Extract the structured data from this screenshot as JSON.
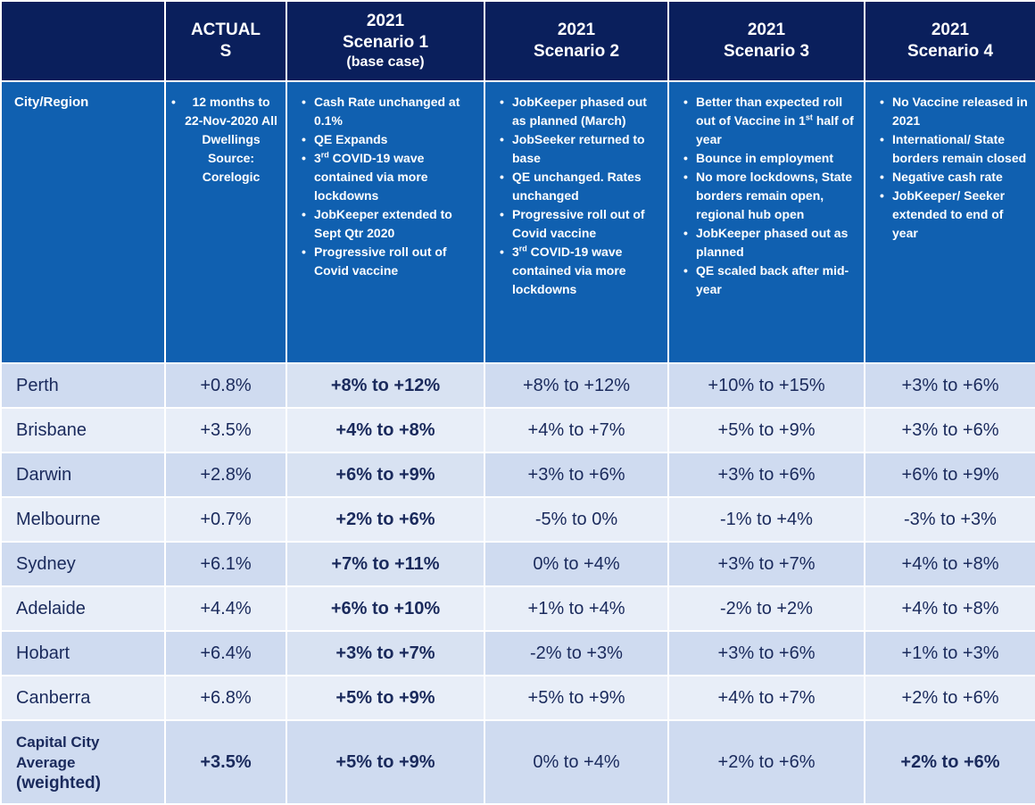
{
  "columns": {
    "label": "",
    "actual": "ACTUALS",
    "s1_line1": "2021",
    "s1_line2": "Scenario 1",
    "s1_line3": "(base case)",
    "s2_line1": "2021",
    "s2_line2": "Scenario 2",
    "s3_line1": "2021",
    "s3_line2": "Scenario 3",
    "s4_line1": "2021",
    "s4_line2": "Scenario 4"
  },
  "desc": {
    "label": "City/Region",
    "actual": [
      "12 months to 22-Nov-2020 All Dwellings Source: Corelogic"
    ],
    "s1": [
      "Cash Rate unchanged at 0.1%",
      "QE Expands",
      "3rd COVID-19 wave contained via more lockdowns",
      "JobKeeper extended to Sept Qtr 2020",
      "Progressive roll out of Covid vaccine"
    ],
    "s2": [
      "JobKeeper phased out as planned (March)",
      "JobSeeker returned to base",
      "QE unchanged. Rates unchanged",
      "Progressive roll out of Covid vaccine",
      "3rd COVID-19 wave contained via more lockdowns"
    ],
    "s3": [
      "Better than expected roll out of Vaccine in 1st half of year",
      "Bounce in employment",
      "No more lockdowns, State borders remain open, regional hub open",
      "JobKeeper phased out as planned",
      "QE scaled back after mid-year"
    ],
    "s4": [
      "No Vaccine released in 2021",
      "International/ State borders remain closed",
      "Negative cash rate",
      "JobKeeper/ Seeker extended to end of year"
    ]
  },
  "rows": [
    {
      "city": "Perth",
      "actual": "+0.8%",
      "s1": "+8% to +12%",
      "s2": "+8% to +12%",
      "s3": "+10% to +15%",
      "s4": "+3% to +6%"
    },
    {
      "city": "Brisbane",
      "actual": "+3.5%",
      "s1": "+4% to +8%",
      "s2": "+4% to +7%",
      "s3": "+5% to +9%",
      "s4": "+3% to +6%"
    },
    {
      "city": "Darwin",
      "actual": "+2.8%",
      "s1": "+6% to +9%",
      "s2": "+3% to +6%",
      "s3": "+3% to +6%",
      "s4": "+6% to +9%"
    },
    {
      "city": "Melbourne",
      "actual": "+0.7%",
      "s1": "+2% to +6%",
      "s2": "-5% to 0%",
      "s3": "-1% to +4%",
      "s4": "-3% to +3%"
    },
    {
      "city": "Sydney",
      "actual": "+6.1%",
      "s1": "+7% to +11%",
      "s2": "0% to +4%",
      "s3": "+3% to +7%",
      "s4": "+4% to +8%"
    },
    {
      "city": "Adelaide",
      "actual": "+4.4%",
      "s1": "+6% to +10%",
      "s2": "+1% to +4%",
      "s3": "-2% to +2%",
      "s4": "+4% to +8%"
    },
    {
      "city": "Hobart",
      "actual": "+6.4%",
      "s1": "+3% to +7%",
      "s2": "-2% to +3%",
      "s3": "+3% to +6%",
      "s4": "+1% to +3%"
    },
    {
      "city": "Canberra",
      "actual": "+6.8%",
      "s1": "+5% to +9%",
      "s2": "+5% to +9%",
      "s3": "+4% to +7%",
      "s4": "+2% to +6%"
    }
  ],
  "average": {
    "city_line1": "Capital City",
    "city_line2": "Average",
    "city_line3": "(weighted)",
    "actual": "+3.5%",
    "s1": "+5% to +9%",
    "s2": "0% to +4%",
    "s3": "+2% to +6%",
    "s4": "+2% to +6%"
  }
}
